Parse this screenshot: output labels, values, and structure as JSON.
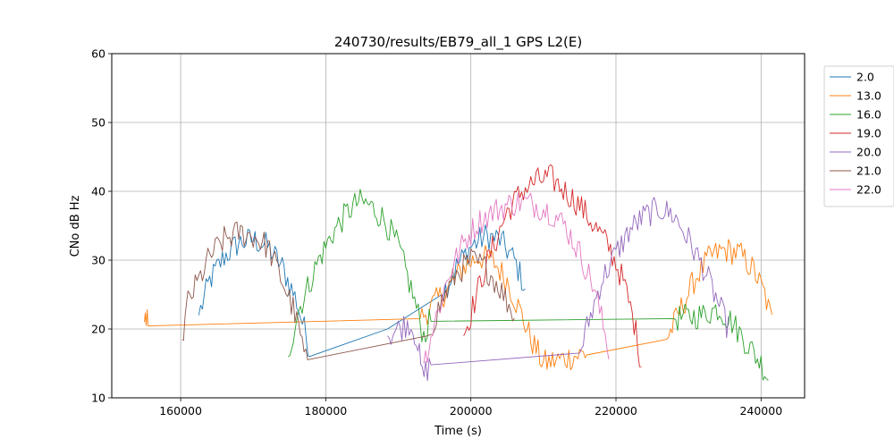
{
  "chart_data": {
    "type": "line",
    "title": "240730/results/EB79_all_1 GPS L2(E)",
    "xlabel": "Time (s)",
    "ylabel": "CNo dB Hz",
    "xlim": [
      150500,
      246000
    ],
    "ylim": [
      10,
      60
    ],
    "xticks": [
      160000,
      180000,
      200000,
      220000,
      240000
    ],
    "yticks": [
      10,
      20,
      30,
      40,
      50,
      60
    ],
    "grid": true,
    "legend_position": "right-outside-top",
    "series": [
      {
        "name": "2.0",
        "color": "#1f77b4",
        "points": [
          [
            162500,
            22
          ],
          [
            164000,
            27
          ],
          [
            166000,
            30.5
          ],
          [
            168000,
            32.5
          ],
          [
            170000,
            33
          ],
          [
            172000,
            32
          ],
          [
            174000,
            29
          ],
          [
            176000,
            24
          ],
          [
            177800,
            17
          ],
          [
            188500,
            20
          ],
          [
            196000,
            25
          ],
          [
            198000,
            29
          ],
          [
            200000,
            32
          ],
          [
            202000,
            33.5
          ],
          [
            204000,
            33
          ],
          [
            206000,
            30
          ],
          [
            207500,
            26
          ]
        ]
      },
      {
        "name": "13.0",
        "color": "#ff7f0e",
        "points": [
          [
            155000,
            21
          ],
          [
            155500,
            21.5
          ],
          [
            193000,
            21.5
          ],
          [
            197000,
            26
          ],
          [
            199000,
            29
          ],
          [
            201000,
            30.5
          ],
          [
            203000,
            30
          ],
          [
            205000,
            27
          ],
          [
            207000,
            22
          ],
          [
            208500,
            18
          ],
          [
            210000,
            15
          ],
          [
            216000,
            16.5
          ],
          [
            227000,
            18.5
          ],
          [
            229000,
            23
          ],
          [
            231000,
            27.5
          ],
          [
            233000,
            30.5
          ],
          [
            235000,
            31.5
          ],
          [
            237000,
            31
          ],
          [
            239000,
            28.5
          ],
          [
            240500,
            25
          ],
          [
            241500,
            21
          ]
        ]
      },
      {
        "name": "16.0",
        "color": "#2ca02c",
        "points": [
          [
            174800,
            16
          ],
          [
            176000,
            22
          ],
          [
            177500,
            26
          ],
          [
            179000,
            30
          ],
          [
            181000,
            34
          ],
          [
            183000,
            37
          ],
          [
            184500,
            38.5
          ],
          [
            186000,
            38
          ],
          [
            188000,
            36
          ],
          [
            190000,
            32
          ],
          [
            192000,
            25
          ],
          [
            193500,
            19
          ],
          [
            194500,
            21.5
          ],
          [
            228000,
            21.5
          ],
          [
            232000,
            22
          ],
          [
            234000,
            23
          ],
          [
            236000,
            21
          ],
          [
            238000,
            18
          ],
          [
            240000,
            15
          ],
          [
            241000,
            13
          ]
        ]
      },
      {
        "name": "19.0",
        "color": "#d62728",
        "points": [
          [
            199000,
            19
          ],
          [
            200500,
            24
          ],
          [
            202000,
            29
          ],
          [
            203500,
            33
          ],
          [
            205000,
            37
          ],
          [
            207000,
            40
          ],
          [
            209000,
            41.5
          ],
          [
            211000,
            42
          ],
          [
            213000,
            40
          ],
          [
            215000,
            38
          ],
          [
            217000,
            35
          ],
          [
            219000,
            32
          ],
          [
            221000,
            27
          ],
          [
            222500,
            21
          ],
          [
            223500,
            15
          ]
        ]
      },
      {
        "name": "20.0",
        "color": "#9467bd",
        "points": [
          [
            188500,
            19
          ],
          [
            190000,
            20
          ],
          [
            191500,
            21
          ],
          [
            192500,
            19
          ],
          [
            193300,
            13
          ],
          [
            194500,
            15
          ],
          [
            215000,
            16.5
          ],
          [
            216500,
            22
          ],
          [
            218000,
            27
          ],
          [
            220000,
            31
          ],
          [
            222000,
            34.5
          ],
          [
            224000,
            36.5
          ],
          [
            226000,
            37.5
          ],
          [
            228000,
            36.5
          ],
          [
            230000,
            33
          ],
          [
            232000,
            29
          ],
          [
            234000,
            24
          ],
          [
            235500,
            20
          ]
        ]
      },
      {
        "name": "21.0",
        "color": "#8c564b",
        "points": [
          [
            160200,
            18.5
          ],
          [
            161000,
            24
          ],
          [
            162500,
            27
          ],
          [
            164000,
            30.5
          ],
          [
            166000,
            33
          ],
          [
            168000,
            34
          ],
          [
            170000,
            33.5
          ],
          [
            172000,
            32
          ],
          [
            174000,
            27
          ],
          [
            175500,
            23
          ],
          [
            176500,
            19
          ],
          [
            177500,
            14
          ],
          [
            194000,
            19
          ],
          [
            196000,
            24
          ],
          [
            198000,
            28
          ],
          [
            200000,
            30
          ],
          [
            202000,
            29
          ],
          [
            204000,
            26
          ],
          [
            206000,
            22
          ]
        ]
      },
      {
        "name": "22.0",
        "color": "#e377c2",
        "points": [
          [
            193500,
            15
          ],
          [
            195000,
            21
          ],
          [
            197000,
            28
          ],
          [
            199000,
            32.5
          ],
          [
            201000,
            35.5
          ],
          [
            203000,
            37
          ],
          [
            205000,
            38
          ],
          [
            207000,
            38.5
          ],
          [
            209000,
            38
          ],
          [
            211000,
            37
          ],
          [
            213000,
            35
          ],
          [
            215000,
            31
          ],
          [
            217000,
            26
          ],
          [
            219000,
            17
          ]
        ]
      }
    ]
  }
}
